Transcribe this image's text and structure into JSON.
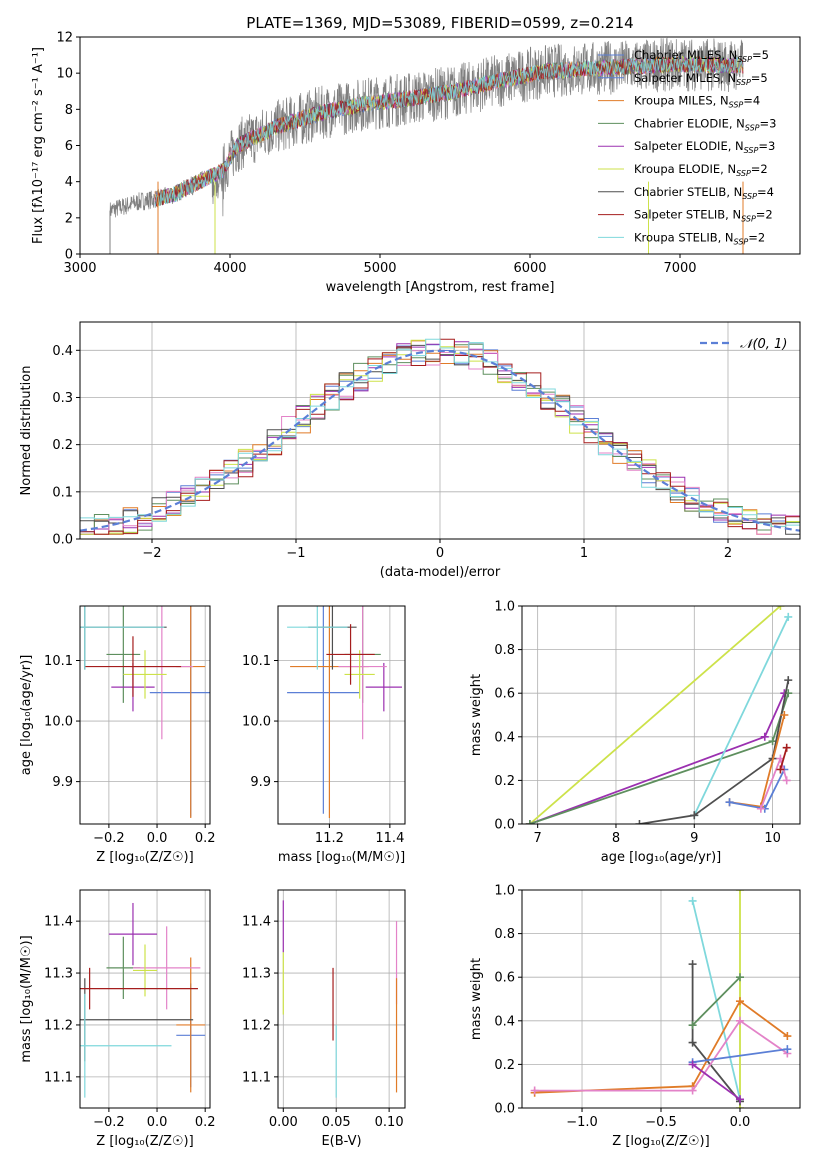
{
  "figure": {
    "title": "PLATE=1369, MJD=53089, FIBERID=0599, z=0.214"
  },
  "colors": {
    "blue": "#5b7fd6",
    "orange": "#e07b28",
    "green": "#5e8f5e",
    "purple": "#9b30b0",
    "pink": "#e383c8",
    "yellow": "#cde24a",
    "dark": "#4f4f4f",
    "red": "#a51d1d",
    "cyan": "#7fd8dc",
    "gray": "#7f7f7f"
  },
  "chart_data": [
    {
      "id": "spectrum",
      "type": "line",
      "xlabel": "wavelength [Angstrom, rest frame]",
      "ylabel": "Flux [fλ10⁻¹⁷ erg cm⁻² s⁻¹ A⁻¹]",
      "xlim": [
        3000,
        7800
      ],
      "ylim": [
        0,
        12
      ],
      "xticks": [
        3000,
        4000,
        5000,
        6000,
        7000
      ],
      "yticks": [
        0,
        2,
        4,
        6,
        8,
        10,
        12
      ],
      "grid": false,
      "legend_position": "top-right",
      "legend": [
        {
          "label": "Chabrier MILES, N",
          "sub": "SSP",
          "tail": "=5",
          "color": "blue"
        },
        {
          "label": "Salpeter MILES, N",
          "sub": "SSP",
          "tail": "=5",
          "color": "blue"
        },
        {
          "label": "Kroupa MILES, N",
          "sub": "SSP",
          "tail": "=4",
          "color": "orange"
        },
        {
          "label": "Chabrier ELODIE, N",
          "sub": "SSP",
          "tail": "=3",
          "color": "green"
        },
        {
          "label": "Salpeter ELODIE, N",
          "sub": "SSP",
          "tail": "=3",
          "color": "purple"
        },
        {
          "label": "Kroupa ELODIE, N",
          "sub": "SSP",
          "tail": "=2",
          "color": "yellow"
        },
        {
          "label": "Chabrier STELIB, N",
          "sub": "SSP",
          "tail": "=4",
          "color": "dark"
        },
        {
          "label": "Salpeter STELIB, N",
          "sub": "SSP",
          "tail": "=2",
          "color": "red"
        },
        {
          "label": "Kroupa STELIB, N",
          "sub": "SSP",
          "tail": "=2",
          "color": "cyan"
        }
      ],
      "continuum": [
        [
          3200,
          2.4
        ],
        [
          3400,
          2.9
        ],
        [
          3600,
          3.2
        ],
        [
          3800,
          4.0
        ],
        [
          3950,
          4.6
        ],
        [
          4050,
          6.0
        ],
        [
          4300,
          7.0
        ],
        [
          4600,
          7.8
        ],
        [
          4900,
          8.3
        ],
        [
          5200,
          8.6
        ],
        [
          5500,
          9.0
        ],
        [
          5800,
          9.6
        ],
        [
          6100,
          10.1
        ],
        [
          6500,
          10.3
        ],
        [
          7000,
          10.5
        ],
        [
          7500,
          10.4
        ],
        [
          7800,
          10.3
        ]
      ],
      "data_range": [
        3200,
        7420
      ],
      "model_range": [
        3500,
        7420
      ]
    },
    {
      "id": "residuals",
      "type": "line",
      "xlabel": "(data-model)/error",
      "ylabel": "Normed distribution",
      "xlim": [
        -2.5,
        2.5
      ],
      "ylim": [
        0,
        0.46
      ],
      "xticks": [
        -2,
        -1,
        0,
        1,
        2
      ],
      "yticks": [
        0.0,
        0.1,
        0.2,
        0.3,
        0.4
      ],
      "grid": true,
      "legend_position": "top-right",
      "legend": [
        {
          "label": "𝒩(0, 1)",
          "color": "blue",
          "dashed": true
        }
      ],
      "bin_width": 0.1
    },
    {
      "id": "age-vs-Z",
      "type": "scatter",
      "xlabel": "Z [log₁₀(Z/Z☉)]",
      "ylabel": "age  [log₁₀(age/yr)]",
      "xlim": [
        -0.32,
        0.22
      ],
      "ylim": [
        9.83,
        10.19
      ],
      "xticks": [
        -0.2,
        0.0,
        0.2
      ],
      "yticks": [
        9.9,
        10.0,
        10.1
      ],
      "grid": true,
      "points": [
        {
          "color": "blue",
          "x": 0.14,
          "y": 10.047,
          "xerr": 0.17,
          "yerr": 0.205
        },
        {
          "color": "orange",
          "x": 0.14,
          "y": 10.09,
          "xerr": 0.06,
          "yerr": 0.25
        },
        {
          "color": "green",
          "x": -0.14,
          "y": 10.11,
          "xerr": 0.07,
          "yerr": 0.08
        },
        {
          "color": "purple",
          "x": -0.1,
          "y": 10.056,
          "xerr": 0.09,
          "yerr": 0.04
        },
        {
          "color": "pink",
          "x": 0.02,
          "y": 10.09,
          "xerr": 0.13,
          "yerr": 0.12
        },
        {
          "color": "yellow",
          "x": -0.05,
          "y": 10.077,
          "xerr": 0.09,
          "yerr": 0.04
        },
        {
          "color": "dark",
          "x": -0.3,
          "y": 10.155,
          "xerr": 0.34,
          "yerr": 0.07
        },
        {
          "color": "red",
          "x": -0.1,
          "y": 10.09,
          "xerr": 0.2,
          "yerr": 0.05
        },
        {
          "color": "cyan",
          "x": -0.3,
          "y": 10.155,
          "xerr": 0.33,
          "yerr": 0.07
        }
      ]
    },
    {
      "id": "age-vs-mass",
      "type": "scatter",
      "xlabel": "mass [log₁₀(M/M☉)]",
      "ylabel": "",
      "xlim": [
        11.03,
        11.45
      ],
      "ylim": [
        9.83,
        10.19
      ],
      "xticks": [
        11.2,
        11.4
      ],
      "yticks": [
        9.9,
        10.0,
        10.1
      ],
      "grid": true,
      "points": [
        {
          "color": "blue",
          "x": 11.18,
          "y": 10.047,
          "xerr": 0.12,
          "yerr": 0.2
        },
        {
          "color": "orange",
          "x": 11.2,
          "y": 10.09,
          "xerr": 0.13,
          "yerr": 0.25
        },
        {
          "color": "green",
          "x": 11.31,
          "y": 10.11,
          "xerr": 0.06,
          "yerr": 0.08
        },
        {
          "color": "purple",
          "x": 11.38,
          "y": 10.056,
          "xerr": 0.06,
          "yerr": 0.04
        },
        {
          "color": "pink",
          "x": 11.31,
          "y": 10.09,
          "xerr": 0.08,
          "yerr": 0.12
        },
        {
          "color": "yellow",
          "x": 11.3,
          "y": 10.077,
          "xerr": 0.05,
          "yerr": 0.04
        },
        {
          "color": "dark",
          "x": 11.21,
          "y": 10.155,
          "xerr": 0.08,
          "yerr": 0.07
        },
        {
          "color": "red",
          "x": 11.27,
          "y": 10.11,
          "xerr": 0.08,
          "yerr": 0.05
        },
        {
          "color": "cyan",
          "x": 11.16,
          "y": 10.155,
          "xerr": 0.1,
          "yerr": 0.07
        }
      ]
    },
    {
      "id": "weight-vs-age",
      "type": "line",
      "xlabel": "age  [log₁₀(age/yr)]",
      "ylabel": "mass weight",
      "xlim": [
        6.8,
        10.35
      ],
      "ylim": [
        0.0,
        1.0
      ],
      "xticks": [
        7,
        8,
        9,
        10
      ],
      "yticks": [
        0.0,
        0.2,
        0.4,
        0.6,
        0.8,
        1.0
      ],
      "grid": true,
      "series": [
        {
          "color": "yellow",
          "points": [
            [
              6.9,
              0.0
            ],
            [
              10.1,
              1.0
            ]
          ]
        },
        {
          "color": "purple",
          "points": [
            [
              6.9,
              0.0
            ],
            [
              9.9,
              0.4
            ],
            [
              10.15,
              0.6
            ]
          ]
        },
        {
          "color": "green",
          "points": [
            [
              6.9,
              0.0
            ],
            [
              10.0,
              0.38
            ],
            [
              10.2,
              0.6
            ]
          ]
        },
        {
          "color": "cyan",
          "points": [
            [
              9.0,
              0.04
            ],
            [
              10.2,
              0.95
            ]
          ]
        },
        {
          "color": "dark",
          "points": [
            [
              8.3,
              0.0
            ],
            [
              9.0,
              0.04
            ],
            [
              10.0,
              0.3
            ],
            [
              10.2,
              0.66
            ]
          ]
        },
        {
          "color": "orange",
          "points": [
            [
              9.45,
              0.1
            ],
            [
              9.85,
              0.08
            ],
            [
              10.15,
              0.5
            ]
          ]
        },
        {
          "color": "blue",
          "points": [
            [
              9.45,
              0.1
            ],
            [
              9.9,
              0.07
            ],
            [
              10.15,
              0.25
            ]
          ]
        },
        {
          "color": "pink",
          "points": [
            [
              9.85,
              0.07
            ],
            [
              10.1,
              0.3
            ],
            [
              10.18,
              0.2
            ]
          ]
        },
        {
          "color": "red",
          "points": [
            [
              10.1,
              0.25
            ],
            [
              10.18,
              0.35
            ]
          ]
        }
      ]
    },
    {
      "id": "mass-vs-Z",
      "type": "scatter",
      "xlabel": "Z [log₁₀(Z/Z☉)]",
      "ylabel": "mass [log₁₀(M/M☉)]",
      "xlim": [
        -0.32,
        0.22
      ],
      "ylim": [
        11.04,
        11.46
      ],
      "xticks": [
        -0.2,
        0.0,
        0.2
      ],
      "yticks": [
        11.1,
        11.2,
        11.3,
        11.4
      ],
      "grid": true,
      "points": [
        {
          "color": "blue",
          "x": 0.14,
          "y": 11.18,
          "xerr": 0.06,
          "yerr": 0.1
        },
        {
          "color": "orange",
          "x": 0.14,
          "y": 11.2,
          "xerr": 0.06,
          "yerr": 0.13
        },
        {
          "color": "green",
          "x": -0.14,
          "y": 11.31,
          "xerr": 0.07,
          "yerr": 0.06
        },
        {
          "color": "purple",
          "x": -0.1,
          "y": 11.375,
          "xerr": 0.1,
          "yerr": 0.06
        },
        {
          "color": "pink",
          "x": 0.04,
          "y": 11.31,
          "xerr": 0.14,
          "yerr": 0.08
        },
        {
          "color": "yellow",
          "x": -0.05,
          "y": 11.305,
          "xerr": 0.05,
          "yerr": 0.05
        },
        {
          "color": "dark",
          "x": -0.3,
          "y": 11.21,
          "xerr": 0.45,
          "yerr": 0.08
        },
        {
          "color": "red",
          "x": -0.28,
          "y": 11.27,
          "xerr": 0.45,
          "yerr": 0.04
        },
        {
          "color": "cyan",
          "x": -0.3,
          "y": 11.16,
          "xerr": 0.36,
          "yerr": 0.1
        }
      ]
    },
    {
      "id": "mass-vs-ebv",
      "type": "scatter",
      "xlabel": "E(B-V)",
      "ylabel": "",
      "xlim": [
        -0.005,
        0.115
      ],
      "ylim": [
        11.04,
        11.46
      ],
      "xticks": [
        0.0,
        0.05,
        0.1
      ],
      "yticks": [
        11.1,
        11.2,
        11.3,
        11.4
      ],
      "grid": true,
      "points": [
        {
          "color": "purple",
          "x": 0.0,
          "y": 11.39,
          "xerr": 0.0,
          "yerr": 0.05
        },
        {
          "color": "yellow",
          "x": 0.0,
          "y": 11.28,
          "xerr": 0.0,
          "yerr": 0.06
        },
        {
          "color": "red",
          "x": 0.047,
          "y": 11.24,
          "xerr": 0.0,
          "yerr": 0.07
        },
        {
          "color": "cyan",
          "x": 0.05,
          "y": 11.13,
          "xerr": 0.0,
          "yerr": 0.07
        },
        {
          "color": "pink",
          "x": 0.107,
          "y": 11.32,
          "xerr": 0.0,
          "yerr": 0.08
        },
        {
          "color": "orange",
          "x": 0.107,
          "y": 11.18,
          "xerr": 0.0,
          "yerr": 0.11
        }
      ]
    },
    {
      "id": "weight-vs-Z",
      "type": "line",
      "xlabel": "Z [log₁₀(Z/Z☉)]",
      "ylabel": "mass weight",
      "xlim": [
        -1.38,
        0.38
      ],
      "ylim": [
        0.0,
        1.0
      ],
      "xticks": [
        -1.0,
        -0.5,
        0.0
      ],
      "yticks": [
        0.0,
        0.2,
        0.4,
        0.6,
        0.8,
        1.0
      ],
      "grid": true,
      "series": [
        {
          "color": "yellow",
          "points": [
            [
              0.0,
              0.0
            ],
            [
              0.0,
              1.0
            ]
          ]
        },
        {
          "color": "cyan",
          "points": [
            [
              -0.3,
              0.95
            ],
            [
              0.0,
              0.04
            ]
          ]
        },
        {
          "color": "dark",
          "points": [
            [
              -0.3,
              0.66
            ],
            [
              -0.3,
              0.3
            ],
            [
              0.0,
              0.03
            ]
          ]
        },
        {
          "color": "green",
          "points": [
            [
              -0.3,
              0.38
            ],
            [
              0.0,
              0.6
            ]
          ]
        },
        {
          "color": "orange",
          "points": [
            [
              -1.3,
              0.07
            ],
            [
              -0.3,
              0.1
            ],
            [
              0.0,
              0.49
            ],
            [
              0.3,
              0.33
            ]
          ]
        },
        {
          "color": "pink",
          "points": [
            [
              -1.3,
              0.08
            ],
            [
              -0.3,
              0.08
            ],
            [
              0.0,
              0.4
            ],
            [
              0.3,
              0.25
            ]
          ]
        },
        {
          "color": "blue",
          "points": [
            [
              -0.3,
              0.21
            ],
            [
              0.3,
              0.27
            ]
          ]
        },
        {
          "color": "purple",
          "points": [
            [
              -0.3,
              0.2
            ],
            [
              0.0,
              0.04
            ]
          ]
        }
      ]
    }
  ]
}
